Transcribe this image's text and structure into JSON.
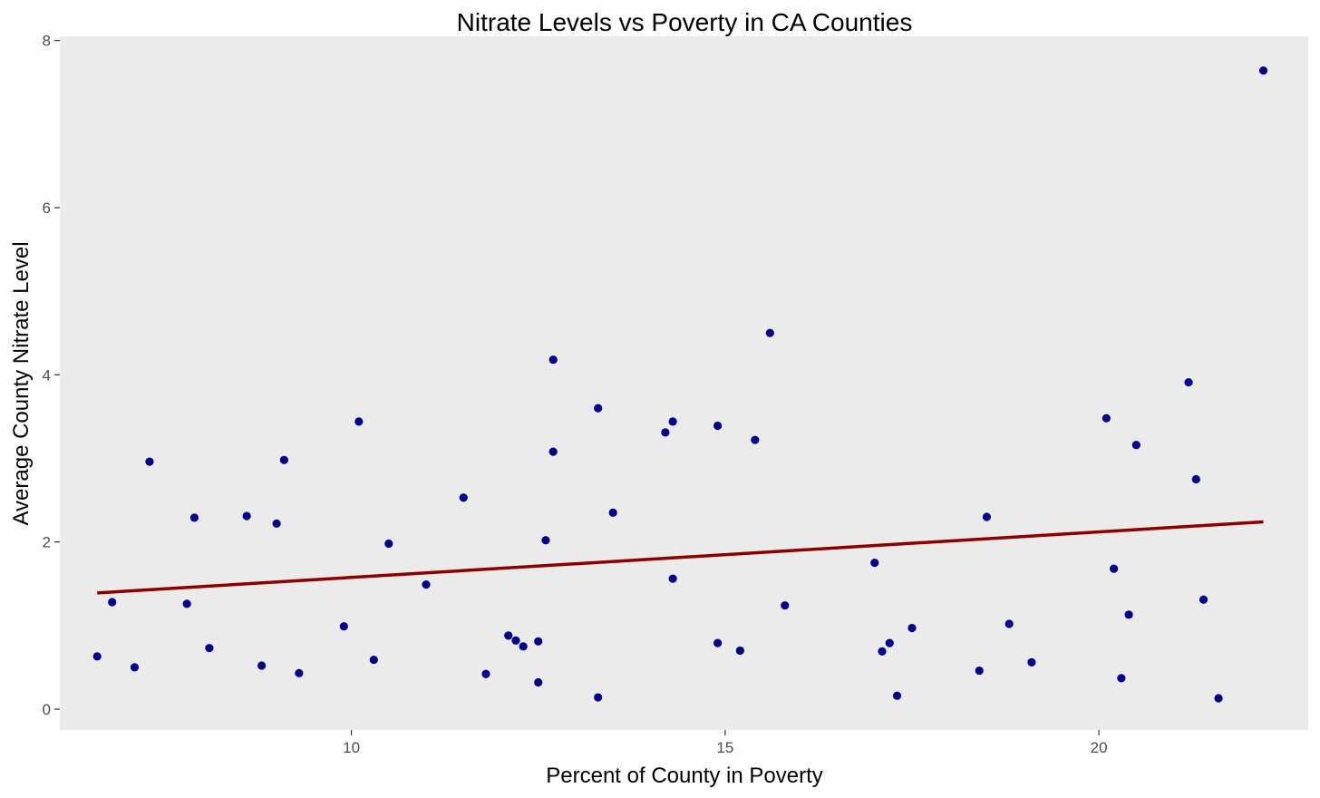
{
  "chart_data": {
    "type": "scatter",
    "title": "Nitrate Levels vs Poverty in CA Counties",
    "xlabel": "Percent of County in Poverty",
    "ylabel": "Average County Nitrate Level",
    "xlim": [
      6.1,
      22.8
    ],
    "ylim": [
      -0.25,
      8.05
    ],
    "x_ticks": [
      10,
      15,
      20
    ],
    "y_ticks": [
      0,
      2,
      4,
      6,
      8
    ],
    "grid": false,
    "panel_background": "#ebebeb",
    "point_color": "#00008b",
    "trend_color": "#8b0000",
    "trend_line": {
      "x": [
        6.6,
        22.2
      ],
      "y": [
        1.39,
        2.24
      ]
    },
    "points": [
      {
        "x": 6.6,
        "y": 0.63
      },
      {
        "x": 6.8,
        "y": 1.28
      },
      {
        "x": 7.1,
        "y": 0.5
      },
      {
        "x": 7.3,
        "y": 2.96
      },
      {
        "x": 7.8,
        "y": 1.26
      },
      {
        "x": 7.9,
        "y": 2.29
      },
      {
        "x": 8.1,
        "y": 0.73
      },
      {
        "x": 8.6,
        "y": 2.31
      },
      {
        "x": 8.8,
        "y": 0.52
      },
      {
        "x": 9.0,
        "y": 2.22
      },
      {
        "x": 9.1,
        "y": 2.98
      },
      {
        "x": 9.3,
        "y": 0.43
      },
      {
        "x": 9.9,
        "y": 0.99
      },
      {
        "x": 10.1,
        "y": 3.44
      },
      {
        "x": 10.3,
        "y": 0.59
      },
      {
        "x": 10.5,
        "y": 1.98
      },
      {
        "x": 11.0,
        "y": 1.49
      },
      {
        "x": 11.5,
        "y": 2.53
      },
      {
        "x": 11.8,
        "y": 0.42
      },
      {
        "x": 12.1,
        "y": 0.88
      },
      {
        "x": 12.2,
        "y": 0.82
      },
      {
        "x": 12.3,
        "y": 0.75
      },
      {
        "x": 12.5,
        "y": 0.81
      },
      {
        "x": 12.5,
        "y": 0.32
      },
      {
        "x": 12.6,
        "y": 2.02
      },
      {
        "x": 12.7,
        "y": 4.18
      },
      {
        "x": 12.7,
        "y": 3.08
      },
      {
        "x": 13.3,
        "y": 3.6
      },
      {
        "x": 13.3,
        "y": 0.14
      },
      {
        "x": 13.5,
        "y": 2.35
      },
      {
        "x": 14.2,
        "y": 3.31
      },
      {
        "x": 14.3,
        "y": 3.44
      },
      {
        "x": 14.3,
        "y": 1.56
      },
      {
        "x": 14.9,
        "y": 3.39
      },
      {
        "x": 14.9,
        "y": 0.79
      },
      {
        "x": 15.2,
        "y": 0.7
      },
      {
        "x": 15.4,
        "y": 3.22
      },
      {
        "x": 15.6,
        "y": 4.5
      },
      {
        "x": 15.8,
        "y": 1.24
      },
      {
        "x": 17.0,
        "y": 1.75
      },
      {
        "x": 17.1,
        "y": 0.69
      },
      {
        "x": 17.2,
        "y": 0.79
      },
      {
        "x": 17.3,
        "y": 0.16
      },
      {
        "x": 17.5,
        "y": 0.97
      },
      {
        "x": 18.4,
        "y": 0.46
      },
      {
        "x": 18.5,
        "y": 2.3
      },
      {
        "x": 18.8,
        "y": 1.02
      },
      {
        "x": 19.1,
        "y": 0.56
      },
      {
        "x": 20.1,
        "y": 3.48
      },
      {
        "x": 20.2,
        "y": 1.68
      },
      {
        "x": 20.3,
        "y": 0.37
      },
      {
        "x": 20.4,
        "y": 1.13
      },
      {
        "x": 20.5,
        "y": 3.16
      },
      {
        "x": 21.2,
        "y": 3.91
      },
      {
        "x": 21.3,
        "y": 2.75
      },
      {
        "x": 21.4,
        "y": 1.31
      },
      {
        "x": 21.6,
        "y": 0.13
      },
      {
        "x": 22.2,
        "y": 7.64
      }
    ]
  }
}
